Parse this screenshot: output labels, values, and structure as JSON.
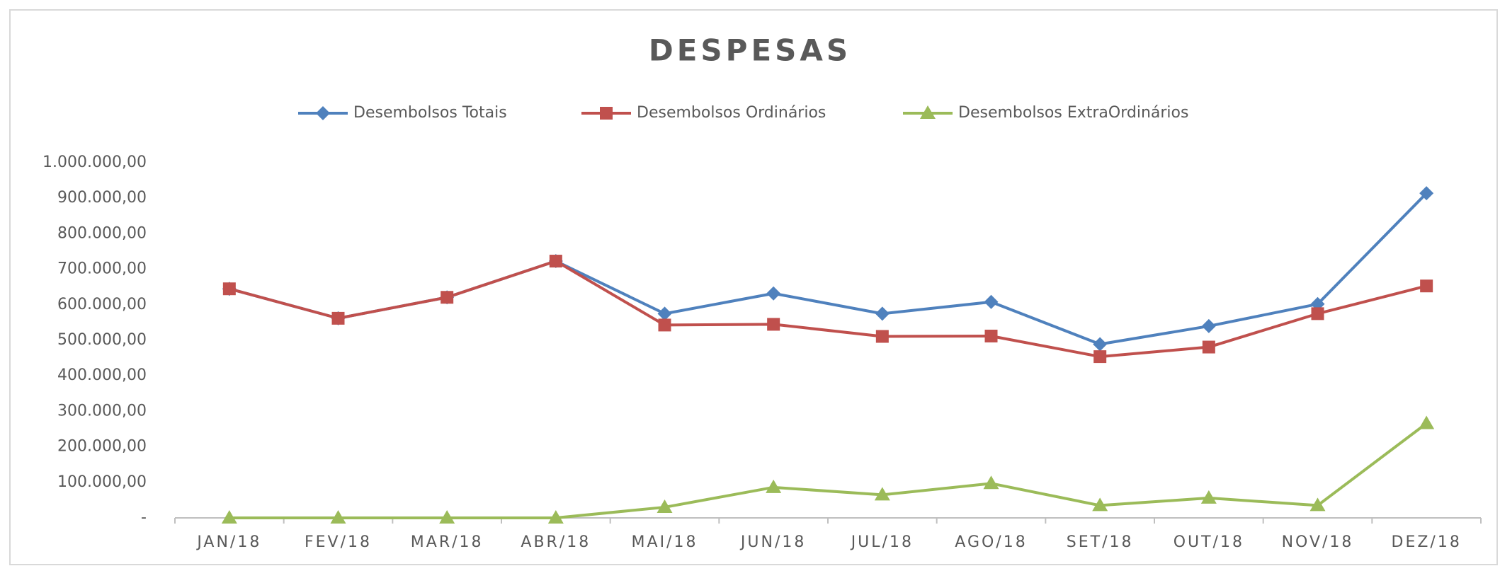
{
  "chart_data": {
    "type": "line",
    "title": "DESPESAS",
    "categories": [
      "JAN/18",
      "FEV/18",
      "MAR/18",
      "ABR/18",
      "MAI/18",
      "JUN/18",
      "JUL/18",
      "AGO/18",
      "SET/18",
      "OUT/18",
      "NOV/18",
      "DEZ/18"
    ],
    "series": [
      {
        "name": "Desembolsos Totais",
        "color": "#4f81bd",
        "marker": "diamond",
        "values": [
          645000,
          562000,
          621000,
          723000,
          575000,
          632000,
          575000,
          608000,
          489000,
          540000,
          602000,
          914000
        ]
      },
      {
        "name": "Desembolsos Ordinários",
        "color": "#c0504d",
        "marker": "square",
        "values": [
          645000,
          562000,
          621000,
          723000,
          543000,
          545000,
          511000,
          512000,
          454000,
          481000,
          575000,
          653000
        ]
      },
      {
        "name": "Desembolsos ExtraOrdinários",
        "color": "#9bbb59",
        "marker": "triangle",
        "values": [
          0,
          0,
          0,
          0,
          30000,
          86000,
          65000,
          97000,
          35000,
          56000,
          35000,
          266000
        ]
      }
    ],
    "ylim": [
      0,
      1000000
    ],
    "yticks": [
      {
        "value": 0,
        "label": "-"
      },
      {
        "value": 100000,
        "label": "100.000,00"
      },
      {
        "value": 200000,
        "label": "200.000,00"
      },
      {
        "value": 300000,
        "label": "300.000,00"
      },
      {
        "value": 400000,
        "label": "400.000,00"
      },
      {
        "value": 500000,
        "label": "500.000,00"
      },
      {
        "value": 600000,
        "label": "600.000,00"
      },
      {
        "value": 700000,
        "label": "700.000,00"
      },
      {
        "value": 800000,
        "label": "800.000,00"
      },
      {
        "value": 900000,
        "label": "900.000,00"
      },
      {
        "value": 1000000,
        "label": "1.000.000,00"
      }
    ],
    "grid": false,
    "legend": "top"
  }
}
